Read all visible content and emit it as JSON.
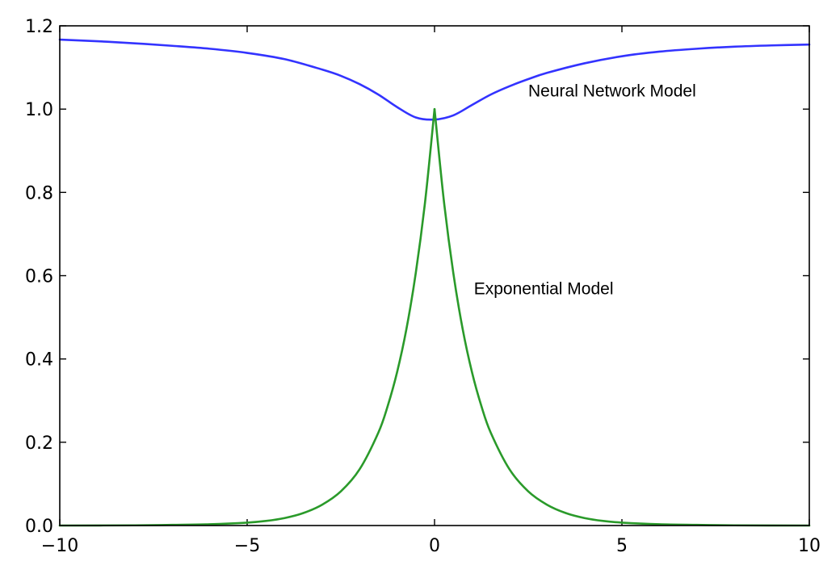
{
  "chart_data": {
    "type": "line",
    "title": "",
    "xlabel": "",
    "ylabel": "",
    "xlim": [
      -10,
      10
    ],
    "ylim": [
      0,
      1.2
    ],
    "grid": false,
    "legend": "none",
    "x_ticks": [
      -10,
      -5,
      0,
      5,
      10
    ],
    "x_tick_labels": [
      "−10",
      "−5",
      "0",
      "5",
      "10"
    ],
    "y_ticks": [
      0,
      0.2,
      0.4,
      0.6,
      0.8,
      1.0,
      1.2
    ],
    "y_tick_labels": [
      "0.0",
      "0.2",
      "0.4",
      "0.6",
      "0.8",
      "1.0",
      "1.2"
    ],
    "series": [
      {
        "color": "#3333ff",
        "x": [
          -10,
          -9,
          -8,
          -7,
          -6,
          -5,
          -4,
          -3,
          -2.5,
          -2,
          -1.5,
          -1,
          -0.5,
          0,
          0.5,
          1,
          1.5,
          2,
          2.5,
          3,
          4,
          5,
          6,
          7,
          8,
          9,
          10
        ],
        "y": [
          1.167,
          1.163,
          1.158,
          1.152,
          1.145,
          1.135,
          1.12,
          1.095,
          1.08,
          1.06,
          1.035,
          1.005,
          0.98,
          0.975,
          0.985,
          1.01,
          1.035,
          1.055,
          1.072,
          1.087,
          1.11,
          1.127,
          1.138,
          1.145,
          1.15,
          1.153,
          1.155
        ]
      },
      {
        "color": "#2a9a2a",
        "x": [
          -10,
          -8,
          -7,
          -6,
          -5,
          -4.5,
          -4,
          -3.5,
          -3,
          -2.5,
          -2,
          -1.5,
          -1.25,
          -1,
          -0.75,
          -0.5,
          -0.25,
          0,
          0.25,
          0.5,
          0.75,
          1,
          1.25,
          1.5,
          2,
          2.5,
          3,
          3.5,
          4,
          4.5,
          5,
          6,
          7,
          8,
          10
        ],
        "y": [
          0.0,
          0.0005,
          0.0015,
          0.003,
          0.007,
          0.011,
          0.018,
          0.03,
          0.05,
          0.082,
          0.135,
          0.223,
          0.287,
          0.368,
          0.472,
          0.607,
          0.779,
          1.0,
          0.779,
          0.607,
          0.472,
          0.368,
          0.287,
          0.223,
          0.135,
          0.082,
          0.05,
          0.03,
          0.018,
          0.011,
          0.007,
          0.003,
          0.0015,
          0.0005,
          0.0
        ]
      }
    ],
    "annotations": [
      {
        "text": "Neural Network Model",
        "x": 2.5,
        "y": 1.03
      },
      {
        "text": "Exponential Model",
        "x": 1.05,
        "y": 0.555
      }
    ]
  }
}
